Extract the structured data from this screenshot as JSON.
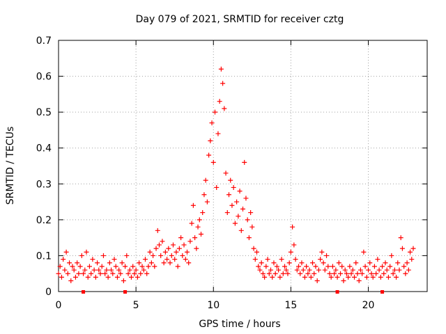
{
  "chart_data": {
    "type": "scatter",
    "title": "Day 079 of 2021, SRMTID for receiver cztg",
    "xlabel": "GPS time / hours",
    "ylabel": "SRMTID / TECUs",
    "xlim": [
      0,
      23.8
    ],
    "ylim": [
      0,
      0.7
    ],
    "xticks": [
      0,
      5,
      10,
      15,
      20
    ],
    "yticks": [
      0,
      0.1,
      0.2,
      0.3,
      0.4,
      0.5,
      0.6,
      0.7
    ],
    "grid": true,
    "marker": "+",
    "color": "#ff0000",
    "series": [
      {
        "name": "SRMTID",
        "points": [
          [
            0.0,
            0.05
          ],
          [
            0.1,
            0.07
          ],
          [
            0.2,
            0.04
          ],
          [
            0.3,
            0.09
          ],
          [
            0.4,
            0.06
          ],
          [
            0.5,
            0.11
          ],
          [
            0.6,
            0.05
          ],
          [
            0.7,
            0.08
          ],
          [
            0.8,
            0.03
          ],
          [
            0.9,
            0.07
          ],
          [
            1.0,
            0.06
          ],
          [
            1.1,
            0.04
          ],
          [
            1.2,
            0.08
          ],
          [
            1.3,
            0.05
          ],
          [
            1.4,
            0.07
          ],
          [
            1.5,
            0.1
          ],
          [
            1.6,
            0.05
          ],
          [
            1.7,
            0.06
          ],
          [
            1.8,
            0.11
          ],
          [
            1.9,
            0.04
          ],
          [
            2.0,
            0.07
          ],
          [
            2.1,
            0.05
          ],
          [
            2.2,
            0.09
          ],
          [
            2.3,
            0.06
          ],
          [
            2.4,
            0.04
          ],
          [
            2.5,
            0.08
          ],
          [
            2.6,
            0.06
          ],
          [
            2.7,
            0.05
          ],
          [
            2.8,
            0.07
          ],
          [
            2.9,
            0.1
          ],
          [
            3.0,
            0.05
          ],
          [
            3.1,
            0.06
          ],
          [
            3.2,
            0.04
          ],
          [
            3.3,
            0.08
          ],
          [
            3.4,
            0.06
          ],
          [
            3.5,
            0.05
          ],
          [
            3.6,
            0.09
          ],
          [
            3.7,
            0.07
          ],
          [
            3.8,
            0.04
          ],
          [
            3.9,
            0.06
          ],
          [
            4.0,
            0.05
          ],
          [
            4.1,
            0.08
          ],
          [
            4.2,
            0.03
          ],
          [
            4.3,
            0.07
          ],
          [
            4.4,
            0.1
          ],
          [
            4.5,
            0.05
          ],
          [
            4.6,
            0.06
          ],
          [
            4.7,
            0.04
          ],
          [
            4.8,
            0.07
          ],
          [
            4.9,
            0.05
          ],
          [
            5.0,
            0.06
          ],
          [
            5.1,
            0.04
          ],
          [
            5.2,
            0.08
          ],
          [
            5.3,
            0.05
          ],
          [
            5.4,
            0.07
          ],
          [
            5.5,
            0.06
          ],
          [
            5.6,
            0.09
          ],
          [
            5.7,
            0.05
          ],
          [
            5.8,
            0.07
          ],
          [
            5.9,
            0.11
          ],
          [
            6.0,
            0.08
          ],
          [
            6.1,
            0.1
          ],
          [
            6.2,
            0.07
          ],
          [
            6.3,
            0.12
          ],
          [
            6.4,
            0.17
          ],
          [
            6.5,
            0.13
          ],
          [
            6.6,
            0.1
          ],
          [
            6.7,
            0.14
          ],
          [
            6.8,
            0.08
          ],
          [
            6.9,
            0.11
          ],
          [
            7.0,
            0.09
          ],
          [
            7.1,
            0.12
          ],
          [
            7.2,
            0.08
          ],
          [
            7.3,
            0.1
          ],
          [
            7.4,
            0.13
          ],
          [
            7.5,
            0.09
          ],
          [
            7.6,
            0.11
          ],
          [
            7.7,
            0.07
          ],
          [
            7.8,
            0.12
          ],
          [
            7.9,
            0.15
          ],
          [
            8.0,
            0.1
          ],
          [
            8.1,
            0.13
          ],
          [
            8.2,
            0.09
          ],
          [
            8.3,
            0.11
          ],
          [
            8.4,
            0.08
          ],
          [
            8.5,
            0.14
          ],
          [
            8.6,
            0.19
          ],
          [
            8.7,
            0.24
          ],
          [
            8.8,
            0.15
          ],
          [
            8.9,
            0.12
          ],
          [
            9.0,
            0.18
          ],
          [
            9.1,
            0.2
          ],
          [
            9.2,
            0.16
          ],
          [
            9.3,
            0.22
          ],
          [
            9.4,
            0.27
          ],
          [
            9.5,
            0.31
          ],
          [
            9.6,
            0.25
          ],
          [
            9.7,
            0.38
          ],
          [
            9.8,
            0.42
          ],
          [
            9.9,
            0.47
          ],
          [
            10.0,
            0.36
          ],
          [
            10.1,
            0.5
          ],
          [
            10.2,
            0.29
          ],
          [
            10.3,
            0.44
          ],
          [
            10.4,
            0.53
          ],
          [
            10.5,
            0.62
          ],
          [
            10.6,
            0.58
          ],
          [
            10.7,
            0.51
          ],
          [
            10.8,
            0.33
          ],
          [
            10.9,
            0.22
          ],
          [
            11.0,
            0.27
          ],
          [
            11.1,
            0.31
          ],
          [
            11.2,
            0.24
          ],
          [
            11.3,
            0.29
          ],
          [
            11.4,
            0.19
          ],
          [
            11.5,
            0.25
          ],
          [
            11.6,
            0.21
          ],
          [
            11.7,
            0.28
          ],
          [
            11.8,
            0.17
          ],
          [
            11.9,
            0.23
          ],
          [
            12.0,
            0.36
          ],
          [
            12.1,
            0.26
          ],
          [
            12.2,
            0.2
          ],
          [
            12.3,
            0.15
          ],
          [
            12.4,
            0.22
          ],
          [
            12.5,
            0.18
          ],
          [
            12.6,
            0.12
          ],
          [
            12.7,
            0.09
          ],
          [
            12.8,
            0.11
          ],
          [
            12.9,
            0.07
          ],
          [
            13.0,
            0.06
          ],
          [
            13.1,
            0.08
          ],
          [
            13.2,
            0.05
          ],
          [
            13.3,
            0.04
          ],
          [
            13.4,
            0.07
          ],
          [
            13.5,
            0.09
          ],
          [
            13.6,
            0.05
          ],
          [
            13.7,
            0.06
          ],
          [
            13.8,
            0.04
          ],
          [
            13.9,
            0.08
          ],
          [
            14.0,
            0.05
          ],
          [
            14.1,
            0.07
          ],
          [
            14.2,
            0.06
          ],
          [
            14.3,
            0.04
          ],
          [
            14.4,
            0.09
          ],
          [
            14.5,
            0.05
          ],
          [
            14.6,
            0.07
          ],
          [
            14.7,
            0.06
          ],
          [
            14.8,
            0.05
          ],
          [
            14.9,
            0.08
          ],
          [
            15.0,
            0.11
          ],
          [
            15.1,
            0.18
          ],
          [
            15.2,
            0.13
          ],
          [
            15.3,
            0.09
          ],
          [
            15.4,
            0.06
          ],
          [
            15.5,
            0.07
          ],
          [
            15.6,
            0.05
          ],
          [
            15.7,
            0.08
          ],
          [
            15.8,
            0.06
          ],
          [
            15.9,
            0.04
          ],
          [
            16.0,
            0.07
          ],
          [
            16.1,
            0.05
          ],
          [
            16.2,
            0.06
          ],
          [
            16.3,
            0.04
          ],
          [
            16.4,
            0.08
          ],
          [
            16.5,
            0.05
          ],
          [
            16.6,
            0.07
          ],
          [
            16.7,
            0.03
          ],
          [
            16.8,
            0.06
          ],
          [
            16.9,
            0.09
          ],
          [
            17.0,
            0.11
          ],
          [
            17.1,
            0.08
          ],
          [
            17.2,
            0.06
          ],
          [
            17.3,
            0.1
          ],
          [
            17.4,
            0.07
          ],
          [
            17.5,
            0.05
          ],
          [
            17.6,
            0.04
          ],
          [
            17.7,
            0.07
          ],
          [
            17.8,
            0.05
          ],
          [
            17.9,
            0.06
          ],
          [
            18.0,
            0.04
          ],
          [
            18.1,
            0.08
          ],
          [
            18.2,
            0.05
          ],
          [
            18.3,
            0.07
          ],
          [
            18.4,
            0.03
          ],
          [
            18.5,
            0.06
          ],
          [
            18.6,
            0.05
          ],
          [
            18.7,
            0.04
          ],
          [
            18.8,
            0.07
          ],
          [
            18.9,
            0.05
          ],
          [
            19.0,
            0.06
          ],
          [
            19.1,
            0.04
          ],
          [
            19.2,
            0.08
          ],
          [
            19.3,
            0.05
          ],
          [
            19.4,
            0.03
          ],
          [
            19.5,
            0.06
          ],
          [
            19.6,
            0.05
          ],
          [
            19.7,
            0.11
          ],
          [
            19.8,
            0.07
          ],
          [
            19.9,
            0.04
          ],
          [
            20.0,
            0.06
          ],
          [
            20.1,
            0.08
          ],
          [
            20.2,
            0.05
          ],
          [
            20.3,
            0.04
          ],
          [
            20.4,
            0.07
          ],
          [
            20.5,
            0.05
          ],
          [
            20.6,
            0.09
          ],
          [
            20.7,
            0.06
          ],
          [
            20.8,
            0.04
          ],
          [
            20.9,
            0.07
          ],
          [
            21.0,
            0.05
          ],
          [
            21.1,
            0.08
          ],
          [
            21.2,
            0.06
          ],
          [
            21.3,
            0.04
          ],
          [
            21.4,
            0.07
          ],
          [
            21.5,
            0.1
          ],
          [
            21.6,
            0.05
          ],
          [
            21.7,
            0.06
          ],
          [
            21.8,
            0.04
          ],
          [
            21.9,
            0.08
          ],
          [
            22.0,
            0.06
          ],
          [
            22.1,
            0.15
          ],
          [
            22.2,
            0.12
          ],
          [
            22.3,
            0.07
          ],
          [
            22.4,
            0.05
          ],
          [
            22.5,
            0.08
          ],
          [
            22.6,
            0.06
          ],
          [
            22.7,
            0.11
          ],
          [
            22.8,
            0.09
          ],
          [
            22.9,
            0.12
          ]
        ]
      }
    ],
    "gap_markers_x": [
      1.6,
      4.3,
      18.0,
      20.9
    ]
  }
}
